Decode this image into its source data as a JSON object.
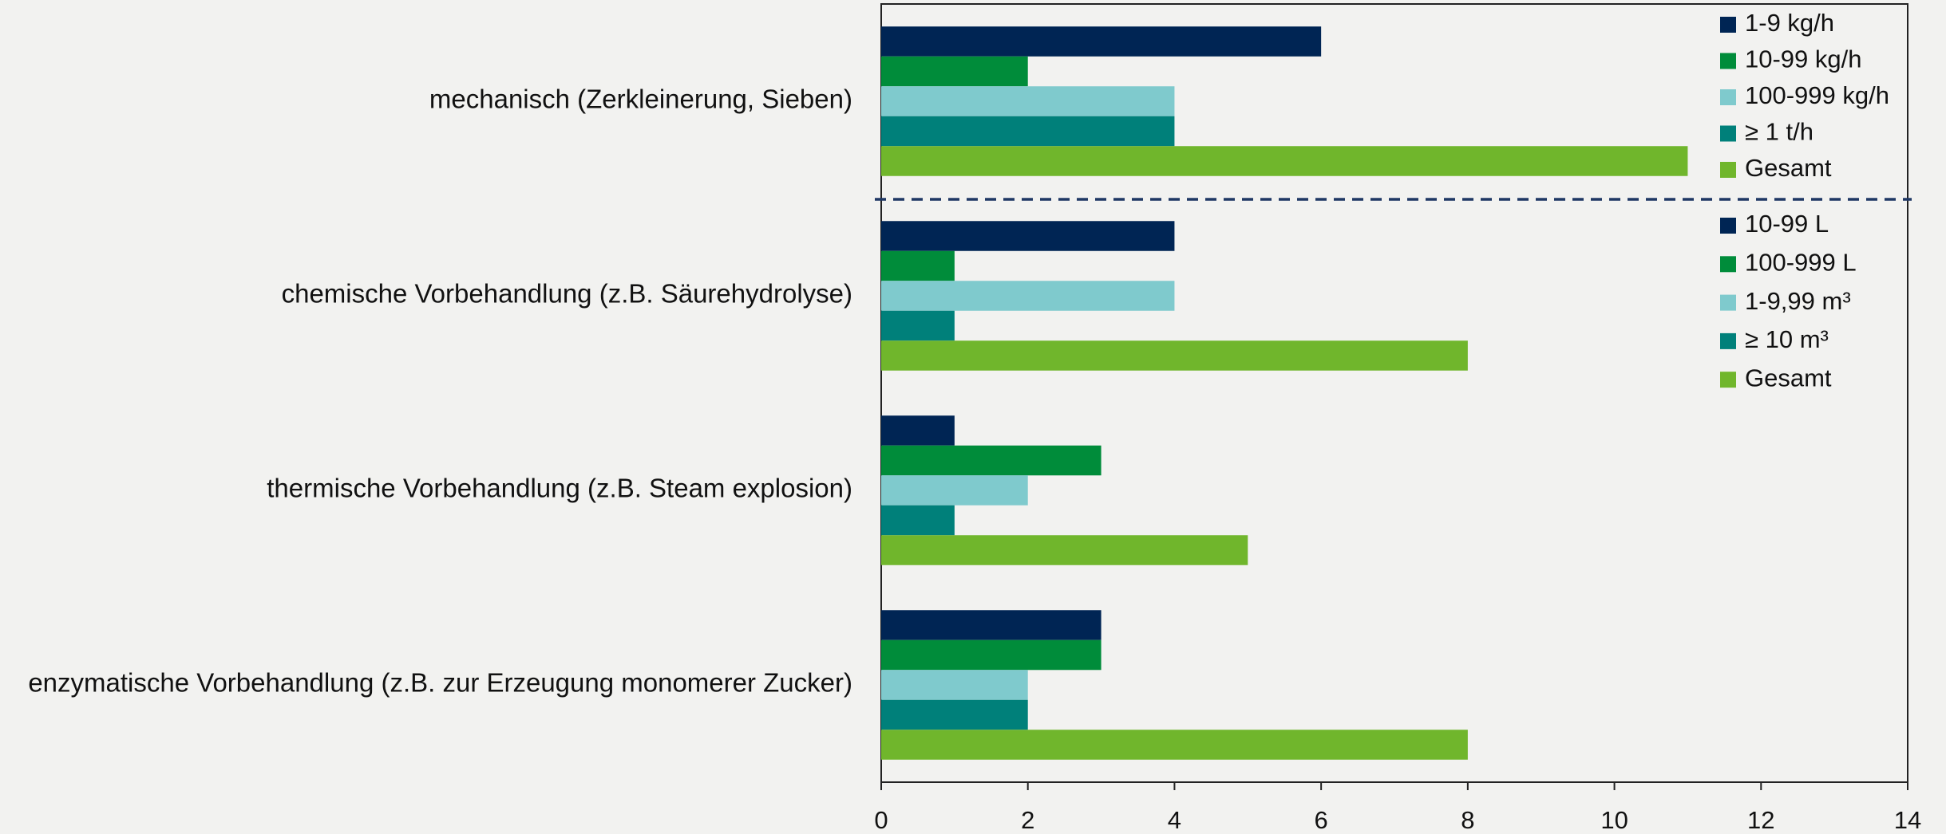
{
  "chart_data": {
    "type": "bar",
    "orientation": "horizontal",
    "categories": [
      "mechanisch (Zerkleinerung, Sieben)",
      "chemische Vorbehandlung (z.B. Säurehydrolyse)",
      "thermische Vorbehandlung (z.B. Steam explosion)",
      "enzymatische Vorbehandlung (z.B. zur Erzeugung monomerer Zucker)"
    ],
    "series": [
      {
        "name": "1-9 kg/h",
        "color": "#002554",
        "values": [
          6,
          4,
          1,
          3
        ]
      },
      {
        "name": "10-99 kg/h",
        "color": "#008c3a",
        "values": [
          2,
          1,
          3,
          3
        ]
      },
      {
        "name": "100-999 kg/h",
        "color": "#7fcacd",
        "values": [
          4,
          4,
          2,
          2
        ]
      },
      {
        "name": "≥ 1 t/h",
        "color": "#00807a",
        "values": [
          4,
          1,
          1,
          2
        ]
      },
      {
        "name": "Gesamt",
        "color": "#70b62c",
        "values": [
          11,
          8,
          5,
          8
        ]
      }
    ],
    "legend2": [
      "10-99 L",
      "100-999 L",
      "1-9,99 m³",
      "≥ 10 m³",
      "Gesamt"
    ],
    "xlim": [
      0,
      14
    ],
    "xticks": [
      0,
      2,
      4,
      6,
      8,
      10,
      12,
      14
    ],
    "grid": false,
    "legend": "top-right"
  }
}
